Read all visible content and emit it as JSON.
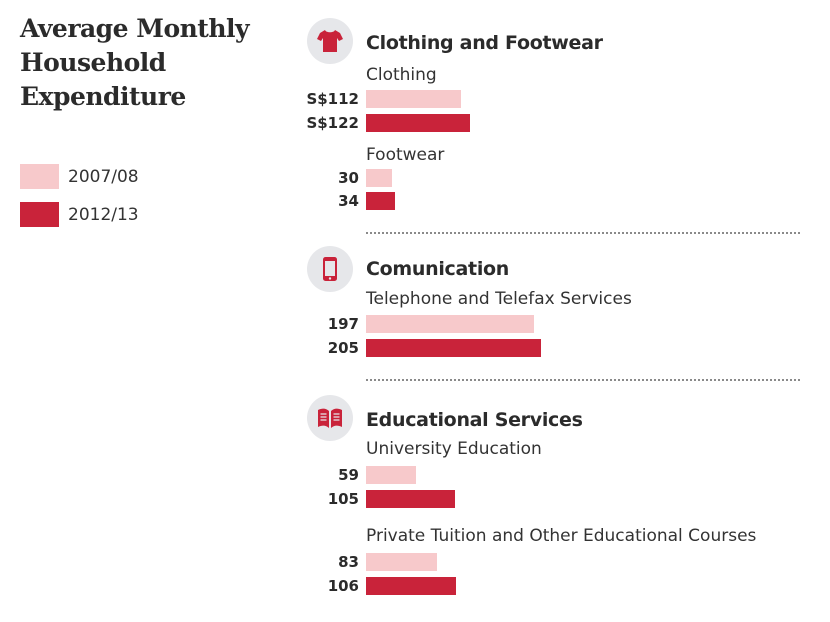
{
  "title": "Average Monthly Household Expenditure",
  "legend": [
    {
      "label": "2007/08",
      "color": "#f7c9cb"
    },
    {
      "label": "2012/13",
      "color": "#c9233a"
    }
  ],
  "icons": [
    "shirt-icon",
    "phone-icon",
    "book-icon"
  ],
  "chart_data": {
    "type": "bar",
    "orientation": "horizontal",
    "title": "Average Monthly Household Expenditure",
    "series_names": [
      "2007/08",
      "2012/13"
    ],
    "sections": [
      {
        "name": "Clothing and Footwear",
        "categories": [
          {
            "name": "Clothing",
            "values": [
              112,
              122
            ],
            "labels": [
              "S$112",
              "S$122"
            ]
          },
          {
            "name": "Footwear",
            "values": [
              30,
              34
            ],
            "labels": [
              "30",
              "34"
            ]
          }
        ]
      },
      {
        "name": "Comunication",
        "categories": [
          {
            "name": "Telephone and Telefax Services",
            "values": [
              197,
              205
            ],
            "labels": [
              "197",
              "205"
            ]
          }
        ]
      },
      {
        "name": "Educational Services",
        "categories": [
          {
            "name": "University Education",
            "values": [
              59,
              105
            ],
            "labels": [
              "59",
              "105"
            ]
          },
          {
            "name": "Private Tuition and Other Educational Courses",
            "values": [
              83,
              106
            ],
            "labels": [
              "83",
              "106"
            ]
          }
        ]
      }
    ]
  }
}
